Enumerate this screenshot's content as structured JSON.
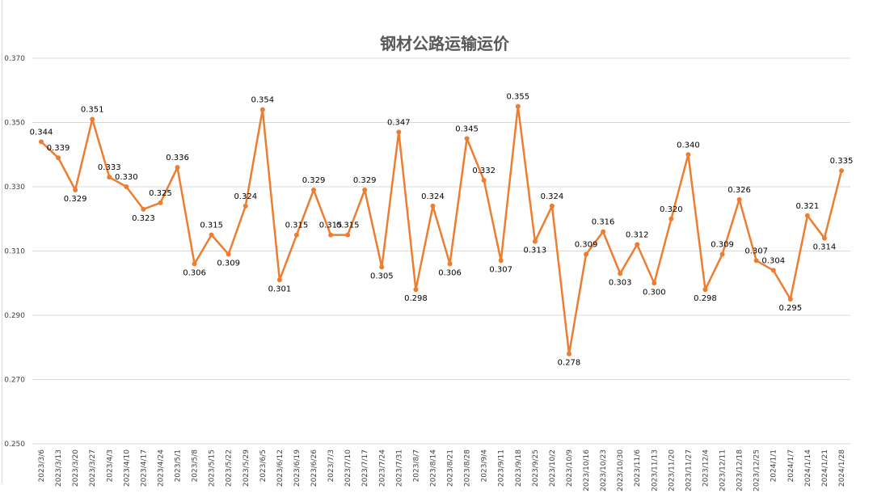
{
  "chart_data": {
    "type": "line",
    "title": "钢材公路运输运价",
    "xlabel": "",
    "ylabel": "",
    "ylim": [
      0.25,
      0.37
    ],
    "yticks": [
      "0.370",
      "0.350",
      "0.330",
      "0.310",
      "0.290",
      "0.270",
      "0.250"
    ],
    "grid": true,
    "line_color": "#ED7D31",
    "categories": [
      "2023/3/6",
      "2023/3/13",
      "2023/3/20",
      "2023/3/27",
      "2023/4/3",
      "2023/4/10",
      "2023/4/17",
      "2023/4/24",
      "2023/5/1",
      "2023/5/8",
      "2023/5/15",
      "2023/5/22",
      "2023/5/29",
      "2023/6/5",
      "2023/6/12",
      "2023/6/19",
      "2023/6/26",
      "2023/7/3",
      "2023/7/10",
      "2023/7/17",
      "2023/7/24",
      "2023/7/31",
      "2023/8/7",
      "2023/8/14",
      "2023/8/21",
      "2023/8/28",
      "2023/9/4",
      "2023/9/11",
      "2023/9/18",
      "2023/9/25",
      "2023/10/2",
      "2023/10/9",
      "2023/10/16",
      "2023/10/23",
      "2023/10/30",
      "2023/11/6",
      "2023/11/13",
      "2023/11/20",
      "2023/11/27",
      "2023/12/4",
      "2023/12/11",
      "2023/12/18",
      "2023/12/25",
      "2024/1/1",
      "2024/1/7",
      "2024/1/14",
      "2024/1/21",
      "2024/1/28"
    ],
    "values": [
      0.344,
      0.339,
      0.329,
      0.351,
      0.333,
      0.33,
      0.323,
      0.325,
      0.336,
      0.306,
      0.315,
      0.309,
      0.324,
      0.354,
      0.301,
      0.315,
      0.329,
      0.315,
      0.315,
      0.329,
      0.305,
      0.347,
      0.298,
      0.324,
      0.306,
      0.345,
      0.332,
      0.307,
      0.355,
      0.313,
      0.324,
      0.278,
      0.309,
      0.316,
      0.303,
      0.312,
      0.3,
      0.32,
      0.34,
      0.298,
      0.309,
      0.326,
      0.307,
      0.304,
      0.295,
      0.321,
      0.314,
      0.335
    ],
    "labels": [
      "0.344",
      "0.339",
      "0.329",
      "0.351",
      "0.333",
      "0.330",
      "0.323",
      "0.325",
      "0.336",
      "0.306",
      "0.315",
      "0.309",
      "0.324",
      "0.354",
      "0.301",
      "0.315",
      "0.329",
      "0.315",
      "0.315",
      "0.329",
      "0.305",
      "0.347",
      "0.298",
      "0.324",
      "0.306",
      "0.345",
      "0.332",
      "0.307",
      "0.355",
      "0.313",
      "0.324",
      "0.278",
      "0.309",
      "0.316",
      "0.303",
      "0.312",
      "0.300",
      "0.320",
      "0.340",
      "0.298",
      "0.309",
      "0.326",
      "0.307",
      "0.304",
      "0.295",
      "0.321",
      "0.314",
      "0.335"
    ]
  }
}
